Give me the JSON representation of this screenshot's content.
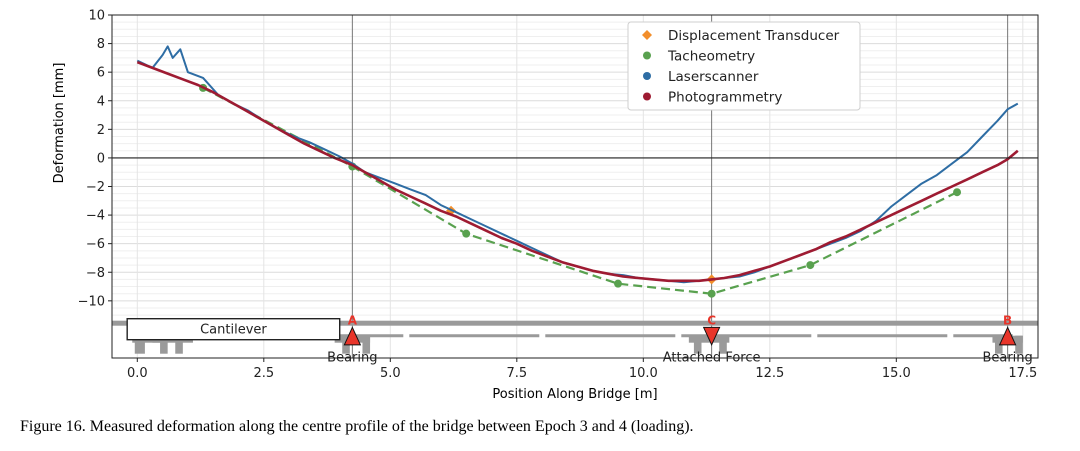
{
  "chart_data": {
    "type": "line",
    "xlabel": "Position Along Bridge [m]",
    "ylabel": "Deformation [mm]",
    "xlim": [
      -0.5,
      17.8
    ],
    "ylim": [
      -14.0,
      10
    ],
    "xticks": [
      "0.0",
      "2.5",
      "5.0",
      "7.5",
      "10.0",
      "12.5",
      "15.0",
      "17.5"
    ],
    "yticks": [
      "10",
      "8",
      "6",
      "4",
      "2",
      "0",
      "−2",
      "−4",
      "−6",
      "−8",
      "−10"
    ],
    "grid": true,
    "legend_position": "top-center",
    "series": [
      {
        "name": "Displacement Transducer",
        "color": "#f28e2b",
        "marker": "diamond",
        "points": [
          [
            6.2,
            -3.7
          ],
          [
            11.35,
            -8.5
          ]
        ]
      },
      {
        "name": "Tacheometry",
        "color": "#59a14f",
        "marker": "circle",
        "style": "dashed",
        "points": [
          [
            1.3,
            4.9
          ],
          [
            4.25,
            -0.6
          ],
          [
            6.5,
            -5.3
          ],
          [
            9.5,
            -8.8
          ],
          [
            11.35,
            -9.5
          ],
          [
            13.3,
            -7.5
          ],
          [
            16.2,
            -2.4
          ]
        ]
      },
      {
        "name": "Laserscanner",
        "color": "#2e6da4",
        "marker": "line",
        "points": [
          [
            0,
            6.8
          ],
          [
            0.3,
            6.3
          ],
          [
            0.5,
            7.2
          ],
          [
            0.6,
            7.8
          ],
          [
            0.7,
            7.0
          ],
          [
            0.85,
            7.6
          ],
          [
            1.0,
            6.0
          ],
          [
            1.3,
            5.6
          ],
          [
            1.6,
            4.4
          ],
          [
            1.9,
            3.8
          ],
          [
            2.2,
            3.3
          ],
          [
            2.5,
            2.6
          ],
          [
            2.8,
            2.0
          ],
          [
            3.1,
            1.5
          ],
          [
            3.4,
            1.1
          ],
          [
            3.7,
            0.6
          ],
          [
            4.0,
            0.1
          ],
          [
            4.25,
            -0.4
          ],
          [
            4.5,
            -1.0
          ],
          [
            4.8,
            -1.4
          ],
          [
            5.1,
            -1.8
          ],
          [
            5.4,
            -2.2
          ],
          [
            5.7,
            -2.6
          ],
          [
            6.0,
            -3.3
          ],
          [
            6.3,
            -3.8
          ],
          [
            6.6,
            -4.3
          ],
          [
            6.9,
            -4.8
          ],
          [
            7.2,
            -5.3
          ],
          [
            7.5,
            -5.8
          ],
          [
            7.8,
            -6.3
          ],
          [
            8.1,
            -6.8
          ],
          [
            8.4,
            -7.3
          ],
          [
            8.7,
            -7.6
          ],
          [
            9.0,
            -7.9
          ],
          [
            9.3,
            -8.1
          ],
          [
            9.6,
            -8.2
          ],
          [
            9.9,
            -8.4
          ],
          [
            10.2,
            -8.5
          ],
          [
            10.5,
            -8.6
          ],
          [
            10.8,
            -8.7
          ],
          [
            11.1,
            -8.6
          ],
          [
            11.35,
            -8.5
          ],
          [
            11.6,
            -8.4
          ],
          [
            11.9,
            -8.3
          ],
          [
            12.2,
            -8.0
          ],
          [
            12.5,
            -7.6
          ],
          [
            12.8,
            -7.2
          ],
          [
            13.1,
            -6.8
          ],
          [
            13.4,
            -6.4
          ],
          [
            13.7,
            -6.0
          ],
          [
            14.0,
            -5.6
          ],
          [
            14.3,
            -5.1
          ],
          [
            14.6,
            -4.4
          ],
          [
            14.9,
            -3.4
          ],
          [
            15.2,
            -2.6
          ],
          [
            15.5,
            -1.8
          ],
          [
            15.8,
            -1.2
          ],
          [
            16.1,
            -0.4
          ],
          [
            16.4,
            0.4
          ],
          [
            16.7,
            1.5
          ],
          [
            17.0,
            2.6
          ],
          [
            17.2,
            3.4
          ],
          [
            17.4,
            3.8
          ]
        ]
      },
      {
        "name": "Photogrammetry",
        "color": "#9e1b32",
        "marker": "line",
        "points": [
          [
            0,
            6.7
          ],
          [
            0.3,
            6.3
          ],
          [
            0.6,
            5.9
          ],
          [
            0.9,
            5.5
          ],
          [
            1.2,
            5.1
          ],
          [
            1.5,
            4.6
          ],
          [
            1.8,
            4.0
          ],
          [
            2.1,
            3.4
          ],
          [
            2.4,
            2.8
          ],
          [
            2.7,
            2.2
          ],
          [
            3.0,
            1.6
          ],
          [
            3.3,
            1.0
          ],
          [
            3.6,
            0.5
          ],
          [
            3.9,
            0.0
          ],
          [
            4.25,
            -0.5
          ],
          [
            4.5,
            -1.0
          ],
          [
            4.8,
            -1.6
          ],
          [
            5.1,
            -2.2
          ],
          [
            5.4,
            -2.7
          ],
          [
            5.7,
            -3.2
          ],
          [
            6.0,
            -3.7
          ],
          [
            6.3,
            -4.1
          ],
          [
            6.6,
            -4.6
          ],
          [
            6.9,
            -5.1
          ],
          [
            7.2,
            -5.6
          ],
          [
            7.5,
            -6.0
          ],
          [
            7.8,
            -6.5
          ],
          [
            8.1,
            -6.9
          ],
          [
            8.4,
            -7.3
          ],
          [
            8.7,
            -7.6
          ],
          [
            9.0,
            -7.9
          ],
          [
            9.3,
            -8.1
          ],
          [
            9.6,
            -8.3
          ],
          [
            9.9,
            -8.4
          ],
          [
            10.2,
            -8.5
          ],
          [
            10.5,
            -8.6
          ],
          [
            10.8,
            -8.6
          ],
          [
            11.1,
            -8.6
          ],
          [
            11.35,
            -8.5
          ],
          [
            11.6,
            -8.4
          ],
          [
            11.9,
            -8.2
          ],
          [
            12.2,
            -7.9
          ],
          [
            12.5,
            -7.6
          ],
          [
            12.8,
            -7.2
          ],
          [
            13.1,
            -6.8
          ],
          [
            13.4,
            -6.4
          ],
          [
            13.7,
            -5.9
          ],
          [
            14.0,
            -5.5
          ],
          [
            14.3,
            -5.0
          ],
          [
            14.6,
            -4.5
          ],
          [
            14.9,
            -4.0
          ],
          [
            15.2,
            -3.5
          ],
          [
            15.5,
            -3.0
          ],
          [
            15.8,
            -2.5
          ],
          [
            16.1,
            -2.0
          ],
          [
            16.4,
            -1.5
          ],
          [
            16.7,
            -1.0
          ],
          [
            17.0,
            -0.5
          ],
          [
            17.2,
            -0.1
          ],
          [
            17.4,
            0.5
          ]
        ]
      }
    ],
    "vertical_lines": [
      4.25,
      11.35,
      17.2
    ],
    "structure_labels": {
      "cantilever": "Cantilever",
      "support_a_letter": "A",
      "support_c_letter": "C",
      "support_b_letter": "B",
      "bearing_a": "Bearing",
      "attached_force": "Attached Force",
      "bearing_b": "Bearing"
    }
  },
  "caption": "Figure 16. Measured deformation along the centre profile of the bridge between Epoch 3 and 4 (loading).",
  "colors": {
    "structure": "#9a9a9a",
    "support_marker": "#e8352a",
    "support_letter": "#e8352a",
    "vertical_line": "#777777"
  }
}
